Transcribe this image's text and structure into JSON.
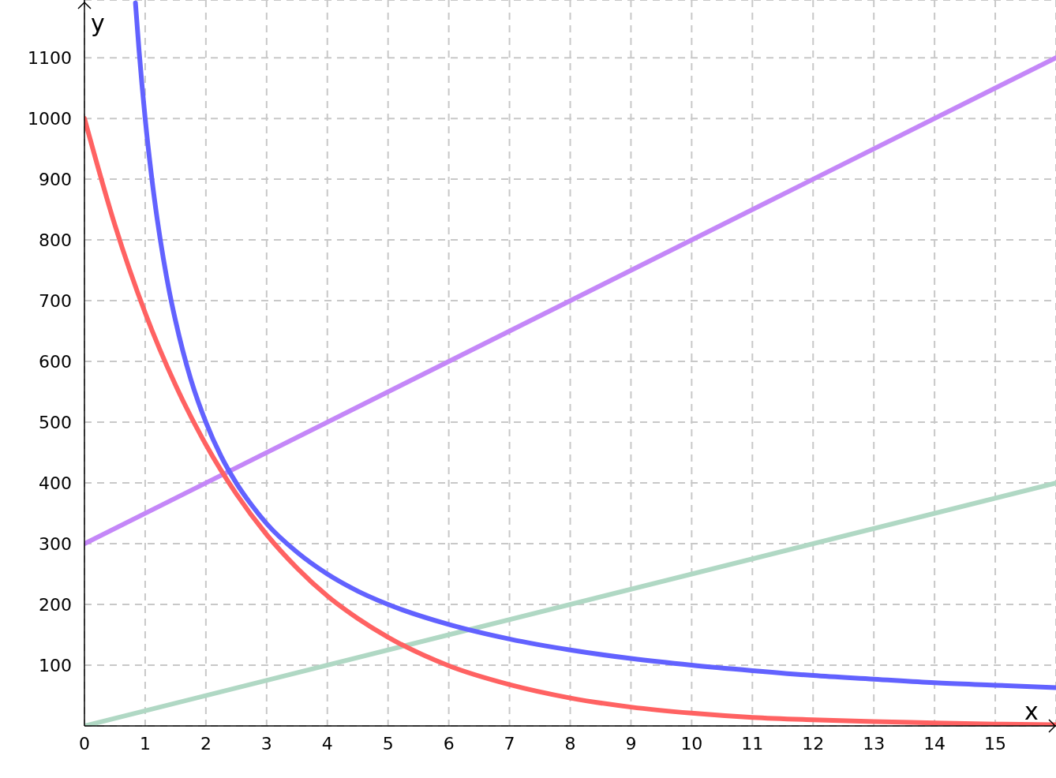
{
  "chart_data": {
    "type": "line",
    "xlabel": "x",
    "ylabel": "y",
    "xlim": [
      0,
      16
    ],
    "ylim": [
      0,
      1195
    ],
    "xticks": [
      0,
      1,
      2,
      3,
      4,
      5,
      6,
      7,
      8,
      9,
      10,
      11,
      12,
      13,
      14,
      15
    ],
    "yticks": [
      100,
      200,
      300,
      400,
      500,
      600,
      700,
      800,
      900,
      1000,
      1100
    ],
    "grid": true,
    "line_style": "solid",
    "series": [
      {
        "color": "#b0d8c4",
        "x": [
          0,
          16
        ],
        "values": [
          0,
          400
        ]
      },
      {
        "color": "#c487f8",
        "x": [
          0,
          16
        ],
        "values": [
          300,
          1100
        ]
      },
      {
        "color": "#ff6262",
        "x": [
          0,
          0.5,
          1,
          1.5,
          2,
          2.5,
          3,
          3.5,
          4,
          4.5,
          5,
          6,
          7,
          8,
          9,
          10,
          11,
          12,
          13,
          14,
          15,
          16
        ],
        "values": [
          1000,
          825,
          680,
          561,
          463,
          382,
          315,
          260,
          214,
          177,
          146,
          99,
          68,
          46,
          31,
          21,
          14,
          10,
          7,
          5,
          3,
          2
        ]
      },
      {
        "color": "#6262ff",
        "x": [
          0.84,
          0.9,
          1,
          1.1,
          1.2,
          1.3,
          1.4,
          1.5,
          1.75,
          2,
          2.25,
          2.5,
          2.75,
          3,
          3.5,
          4,
          4.5,
          5,
          6,
          7,
          8,
          9,
          10,
          11,
          12,
          13,
          14,
          15,
          16
        ],
        "values": [
          1190,
          1111,
          1000,
          909,
          833,
          769,
          714,
          667,
          571,
          500,
          444,
          400,
          364,
          333,
          286,
          250,
          222,
          200,
          167,
          143,
          125,
          111,
          100,
          91,
          83,
          77,
          71,
          67,
          63
        ]
      }
    ]
  }
}
